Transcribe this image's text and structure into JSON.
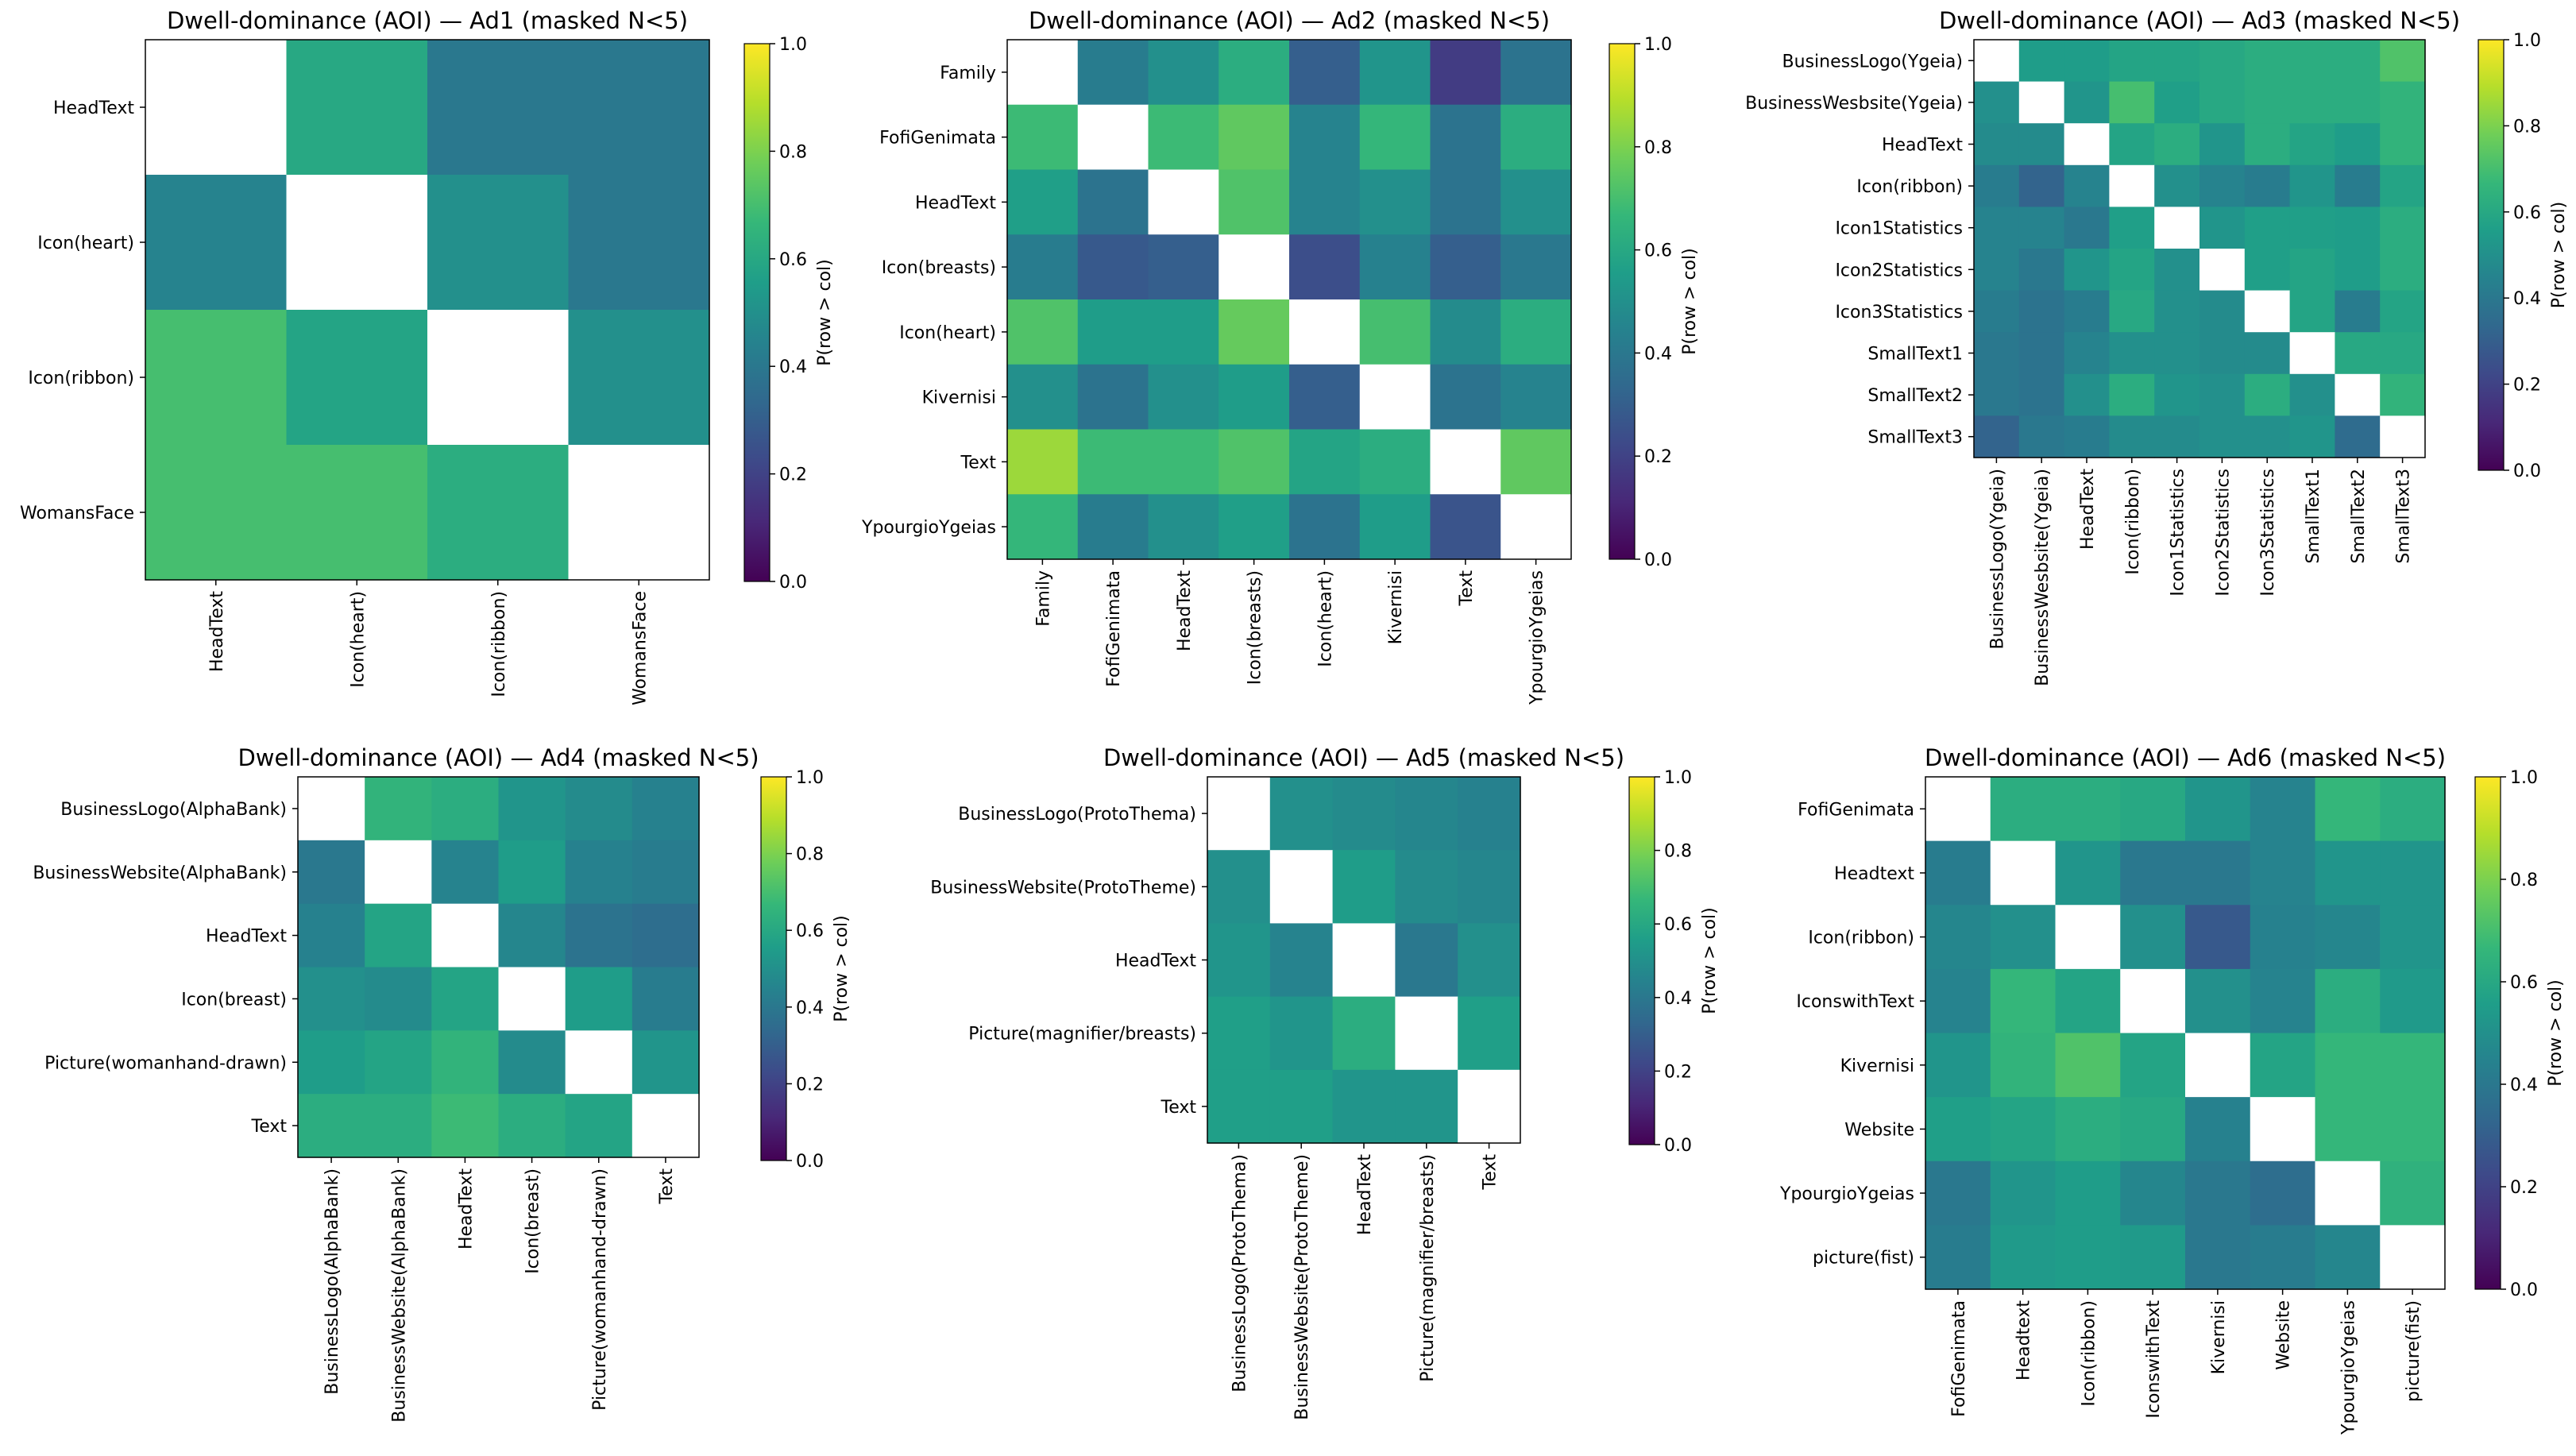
{
  "chart_data": [
    {
      "type": "heatmap",
      "title": "Dwell-dominance (AOI) — Ad1 (masked N<5)",
      "colorbar_label": "P(row > col)",
      "vmin": 0.0,
      "vmax": 1.0,
      "colorbar_ticks": [
        "0.0",
        "0.2",
        "0.4",
        "0.6",
        "0.8",
        "1.0"
      ],
      "labels": [
        "HeadText",
        "Icon(heart)",
        "Icon(ribbon)",
        "WomansFace"
      ],
      "values": [
        [
          null,
          0.6,
          0.4,
          0.4
        ],
        [
          0.45,
          null,
          0.5,
          0.4
        ],
        [
          0.7,
          0.58,
          null,
          0.5
        ],
        [
          0.7,
          0.7,
          0.62,
          null
        ]
      ]
    },
    {
      "type": "heatmap",
      "title": "Dwell-dominance (AOI) — Ad2 (masked N<5)",
      "colorbar_label": "P(row > col)",
      "vmin": 0.0,
      "vmax": 1.0,
      "colorbar_ticks": [
        "0.0",
        "0.2",
        "0.4",
        "0.6",
        "0.8",
        "1.0"
      ],
      "labels": [
        "Family",
        "FofiGenimata",
        "HeadText",
        "Icon(breasts)",
        "Icon(heart)",
        "Kivernisi",
        "Text",
        "YpourgioYgeias"
      ],
      "values": [
        [
          null,
          0.42,
          0.5,
          0.62,
          0.3,
          0.52,
          0.18,
          0.38
        ],
        [
          0.68,
          null,
          0.68,
          0.75,
          0.45,
          0.66,
          0.38,
          0.62
        ],
        [
          0.56,
          0.38,
          null,
          0.72,
          0.45,
          0.5,
          0.38,
          0.5
        ],
        [
          0.42,
          0.28,
          0.3,
          null,
          0.24,
          0.44,
          0.3,
          0.4
        ],
        [
          0.72,
          0.55,
          0.55,
          0.76,
          null,
          0.7,
          0.48,
          0.62
        ],
        [
          0.5,
          0.38,
          0.5,
          0.55,
          0.3,
          null,
          0.38,
          0.45
        ],
        [
          0.85,
          0.68,
          0.68,
          0.72,
          0.58,
          0.62,
          null,
          0.75
        ],
        [
          0.66,
          0.42,
          0.5,
          0.56,
          0.38,
          0.55,
          0.26,
          null
        ]
      ]
    },
    {
      "type": "heatmap",
      "title": "Dwell-dominance (AOI) — Ad3 (masked N<5)",
      "colorbar_label": "P(row > col)",
      "vmin": 0.0,
      "vmax": 1.0,
      "colorbar_ticks": [
        "0.0",
        "0.2",
        "0.4",
        "0.6",
        "0.8",
        "1.0"
      ],
      "labels": [
        "BusinessLogo(Ygeia)",
        "BusinessWesbsite(Ygeia)",
        "HeadText",
        "Icon(ribbon)",
        "Icon1Statistics",
        "Icon2Statistics",
        "Icon3Statistics",
        "SmallText1",
        "SmallText2",
        "SmallText3"
      ],
      "values": [
        [
          null,
          0.55,
          0.55,
          0.58,
          0.58,
          0.6,
          0.62,
          0.62,
          0.62,
          0.72
        ],
        [
          0.5,
          null,
          0.52,
          0.7,
          0.56,
          0.6,
          0.62,
          0.62,
          0.62,
          0.65
        ],
        [
          0.48,
          0.48,
          null,
          0.58,
          0.62,
          0.52,
          0.62,
          0.58,
          0.55,
          0.65
        ],
        [
          0.42,
          0.32,
          0.45,
          null,
          0.5,
          0.45,
          0.42,
          0.52,
          0.42,
          0.58
        ],
        [
          0.45,
          0.45,
          0.4,
          0.56,
          null,
          0.52,
          0.56,
          0.56,
          0.55,
          0.62
        ],
        [
          0.45,
          0.4,
          0.52,
          0.58,
          0.5,
          null,
          0.56,
          0.58,
          0.55,
          0.62
        ],
        [
          0.42,
          0.38,
          0.42,
          0.6,
          0.5,
          0.48,
          null,
          0.58,
          0.42,
          0.58
        ],
        [
          0.4,
          0.38,
          0.45,
          0.5,
          0.5,
          0.48,
          0.48,
          null,
          0.6,
          0.6
        ],
        [
          0.4,
          0.38,
          0.5,
          0.62,
          0.52,
          0.5,
          0.62,
          0.5,
          null,
          0.65
        ],
        [
          0.32,
          0.4,
          0.42,
          0.48,
          0.48,
          0.5,
          0.5,
          0.52,
          0.35,
          null
        ]
      ]
    },
    {
      "type": "heatmap",
      "title": "Dwell-dominance (AOI) — Ad4 (masked N<5)",
      "colorbar_label": "P(row > col)",
      "vmin": 0.0,
      "vmax": 1.0,
      "colorbar_ticks": [
        "0.0",
        "0.2",
        "0.4",
        "0.6",
        "0.8",
        "1.0"
      ],
      "labels": [
        "BusinessLogo(AlphaBank)",
        "BusinessWebsite(AlphaBank)",
        "HeadText",
        "Icon(breast)",
        "Picture(womanhand-drawn)",
        "Text"
      ],
      "values": [
        [
          null,
          0.65,
          0.62,
          0.52,
          0.48,
          0.44
        ],
        [
          0.4,
          null,
          0.45,
          0.55,
          0.44,
          0.42
        ],
        [
          0.44,
          0.58,
          null,
          0.46,
          0.38,
          0.36
        ],
        [
          0.5,
          0.48,
          0.58,
          null,
          0.55,
          0.42
        ],
        [
          0.55,
          0.58,
          0.65,
          0.48,
          null,
          0.52
        ],
        [
          0.62,
          0.62,
          0.68,
          0.62,
          0.58,
          null
        ]
      ]
    },
    {
      "type": "heatmap",
      "title": "Dwell-dominance (AOI) — Ad5 (masked N<5)",
      "colorbar_label": "P(row > col)",
      "vmin": 0.0,
      "vmax": 1.0,
      "colorbar_ticks": [
        "0.0",
        "0.2",
        "0.4",
        "0.6",
        "0.8",
        "1.0"
      ],
      "labels": [
        "BusinessLogo(ProtoThema)",
        "BusinessWebsite(ProtoTheme)",
        "HeadText",
        "Picture(magnifier/breasts)",
        "Text"
      ],
      "values": [
        [
          null,
          0.5,
          0.48,
          0.46,
          0.44
        ],
        [
          0.5,
          null,
          0.55,
          0.48,
          0.46
        ],
        [
          0.52,
          0.45,
          null,
          0.4,
          0.5
        ],
        [
          0.56,
          0.52,
          0.62,
          null,
          0.56
        ],
        [
          0.56,
          0.56,
          0.52,
          0.52,
          null
        ]
      ]
    },
    {
      "type": "heatmap",
      "title": "Dwell-dominance (AOI) — Ad6 (masked N<5)",
      "colorbar_label": "P(row > col)",
      "vmin": 0.0,
      "vmax": 1.0,
      "colorbar_ticks": [
        "0.0",
        "0.2",
        "0.4",
        "0.6",
        "0.8",
        "1.0"
      ],
      "labels": [
        "FofiGenimata",
        "Headtext",
        "Icon(ribbon)",
        "IconswithText",
        "Kivernisi",
        "Website",
        "YpourgioYgeias",
        "picture(fist)"
      ],
      "values": [
        [
          null,
          0.62,
          0.62,
          0.6,
          0.52,
          0.45,
          0.66,
          0.62
        ],
        [
          0.42,
          null,
          0.52,
          0.4,
          0.4,
          0.45,
          0.52,
          0.52
        ],
        [
          0.46,
          0.5,
          null,
          0.5,
          0.28,
          0.44,
          0.46,
          0.52
        ],
        [
          0.45,
          0.66,
          0.58,
          null,
          0.5,
          0.45,
          0.62,
          0.54
        ],
        [
          0.52,
          0.65,
          0.72,
          0.58,
          null,
          0.58,
          0.66,
          0.66
        ],
        [
          0.56,
          0.58,
          0.62,
          0.6,
          0.44,
          null,
          0.66,
          0.66
        ],
        [
          0.4,
          0.52,
          0.55,
          0.46,
          0.4,
          0.36,
          null,
          0.64
        ],
        [
          0.42,
          0.54,
          0.55,
          0.54,
          0.4,
          0.42,
          0.46,
          null
        ]
      ]
    }
  ],
  "colors": {
    "masked": "#ffffff",
    "viridis": [
      "#440154",
      "#482878",
      "#3e4989",
      "#31688e",
      "#26828e",
      "#1f9e89",
      "#35b779",
      "#6ece58",
      "#b5de2b",
      "#fde725"
    ]
  }
}
